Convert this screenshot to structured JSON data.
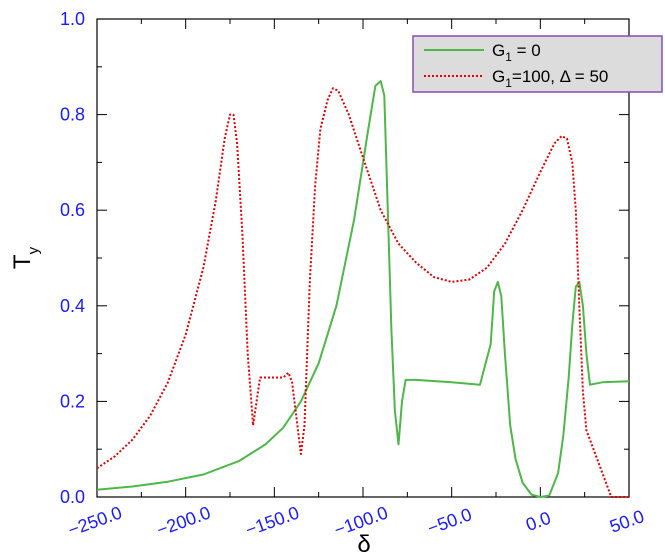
{
  "chart_data": {
    "type": "line",
    "xlabel": "δ",
    "ylabel": "T",
    "ylabel_sub": "y",
    "xlim": [
      -250,
      50
    ],
    "ylim": [
      0,
      1.0
    ],
    "x_ticks": [
      "−250.0",
      "−200.0",
      "−150.0",
      "−100.0",
      "−50.0",
      "0.0",
      "50.0"
    ],
    "y_ticks": [
      "0.0",
      "0.2",
      "0.4",
      "0.6",
      "0.8",
      "1.0"
    ],
    "tick_color": "#1a1aff",
    "grid": false,
    "legend_position": "top-right",
    "legend_background": "#dcdcdc",
    "legend_border": "#8a4fb0",
    "series": [
      {
        "name_main": "G",
        "name_sub": "1",
        "name_rest": " = 0",
        "color": "#4db848",
        "style": "solid",
        "points": [
          [
            -250,
            0.015
          ],
          [
            -230,
            0.022
          ],
          [
            -210,
            0.032
          ],
          [
            -190,
            0.047
          ],
          [
            -170,
            0.075
          ],
          [
            -155,
            0.11
          ],
          [
            -145,
            0.145
          ],
          [
            -135,
            0.2
          ],
          [
            -125,
            0.28
          ],
          [
            -115,
            0.4
          ],
          [
            -105,
            0.58
          ],
          [
            -97,
            0.77
          ],
          [
            -93,
            0.86
          ],
          [
            -90,
            0.87
          ],
          [
            -88,
            0.84
          ],
          [
            -86,
            0.6
          ],
          [
            -84,
            0.35
          ],
          [
            -82,
            0.18
          ],
          [
            -80,
            0.11
          ],
          [
            -78,
            0.2
          ],
          [
            -76,
            0.245
          ],
          [
            -70,
            0.245
          ],
          [
            -50,
            0.24
          ],
          [
            -34,
            0.235
          ],
          [
            -28,
            0.32
          ],
          [
            -26,
            0.43
          ],
          [
            -24,
            0.45
          ],
          [
            -22,
            0.42
          ],
          [
            -20,
            0.3
          ],
          [
            -17,
            0.15
          ],
          [
            -14,
            0.08
          ],
          [
            -10,
            0.03
          ],
          [
            -5,
            0.005
          ],
          [
            0,
            0.0
          ],
          [
            5,
            0.003
          ],
          [
            10,
            0.05
          ],
          [
            13,
            0.13
          ],
          [
            16,
            0.25
          ],
          [
            18,
            0.36
          ],
          [
            20,
            0.44
          ],
          [
            22,
            0.45
          ],
          [
            24,
            0.4
          ],
          [
            26,
            0.3
          ],
          [
            28,
            0.235
          ],
          [
            35,
            0.24
          ],
          [
            50,
            0.242
          ]
        ]
      },
      {
        "name_main": "G",
        "name_sub": "1",
        "name_rest": "=100, Δ = 50",
        "color": "#e30000",
        "style": "dotted",
        "points": [
          [
            -250,
            0.06
          ],
          [
            -240,
            0.085
          ],
          [
            -230,
            0.12
          ],
          [
            -220,
            0.17
          ],
          [
            -210,
            0.24
          ],
          [
            -200,
            0.34
          ],
          [
            -190,
            0.48
          ],
          [
            -183,
            0.62
          ],
          [
            -178,
            0.75
          ],
          [
            -175,
            0.8
          ],
          [
            -173,
            0.8
          ],
          [
            -171,
            0.74
          ],
          [
            -168,
            0.55
          ],
          [
            -165,
            0.3
          ],
          [
            -162,
            0.15
          ],
          [
            -160,
            0.2
          ],
          [
            -158,
            0.25
          ],
          [
            -150,
            0.25
          ],
          [
            -145,
            0.25
          ],
          [
            -142,
            0.26
          ],
          [
            -140,
            0.24
          ],
          [
            -137,
            0.15
          ],
          [
            -135,
            0.09
          ],
          [
            -133,
            0.15
          ],
          [
            -130,
            0.45
          ],
          [
            -127,
            0.65
          ],
          [
            -124,
            0.77
          ],
          [
            -120,
            0.83
          ],
          [
            -117,
            0.855
          ],
          [
            -114,
            0.85
          ],
          [
            -108,
            0.8
          ],
          [
            -100,
            0.71
          ],
          [
            -90,
            0.6
          ],
          [
            -80,
            0.53
          ],
          [
            -70,
            0.49
          ],
          [
            -60,
            0.46
          ],
          [
            -50,
            0.45
          ],
          [
            -40,
            0.455
          ],
          [
            -30,
            0.48
          ],
          [
            -20,
            0.53
          ],
          [
            -10,
            0.6
          ],
          [
            0,
            0.68
          ],
          [
            8,
            0.74
          ],
          [
            12,
            0.755
          ],
          [
            15,
            0.75
          ],
          [
            18,
            0.7
          ],
          [
            20,
            0.6
          ],
          [
            22,
            0.4
          ],
          [
            24,
            0.22
          ],
          [
            26,
            0.14
          ],
          [
            30,
            0.1
          ],
          [
            35,
            0.05
          ],
          [
            40,
            0.0
          ],
          [
            50,
            0.0
          ]
        ]
      }
    ]
  }
}
